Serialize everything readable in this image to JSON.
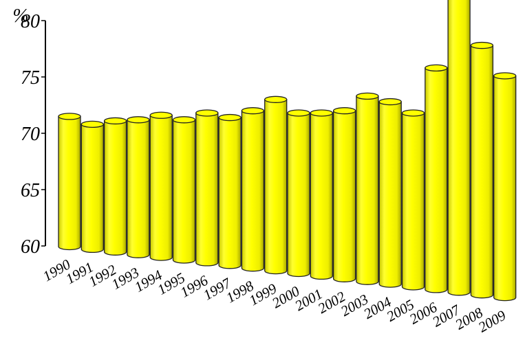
{
  "chart_data": {
    "type": "bar",
    "style": "3d-cylinder",
    "title": "",
    "xlabel": "",
    "ylabel": "",
    "y_unit": "%",
    "ylim": [
      60,
      80
    ],
    "y_ticks": [
      "60",
      "65",
      "70",
      "75",
      "80"
    ],
    "grid": false,
    "legend": "none",
    "categories": [
      "1990",
      "1991",
      "1992",
      "1993",
      "1994",
      "1995",
      "1996",
      "1997",
      "1998",
      "1999",
      "2000",
      "2001",
      "2002",
      "2003",
      "2004",
      "2005",
      "2006",
      "2007",
      "2008",
      "2009"
    ],
    "series": [
      {
        "values": [
          71.5,
          70.8,
          71.1,
          71.2,
          71.6,
          71.2,
          71.8,
          71.4,
          72.0,
          73.0,
          71.8,
          71.8,
          72.0,
          73.3,
          72.8,
          71.8,
          75.8,
          82.3,
          77.8,
          75.1
        ],
        "color": "#ffff00"
      }
    ]
  }
}
